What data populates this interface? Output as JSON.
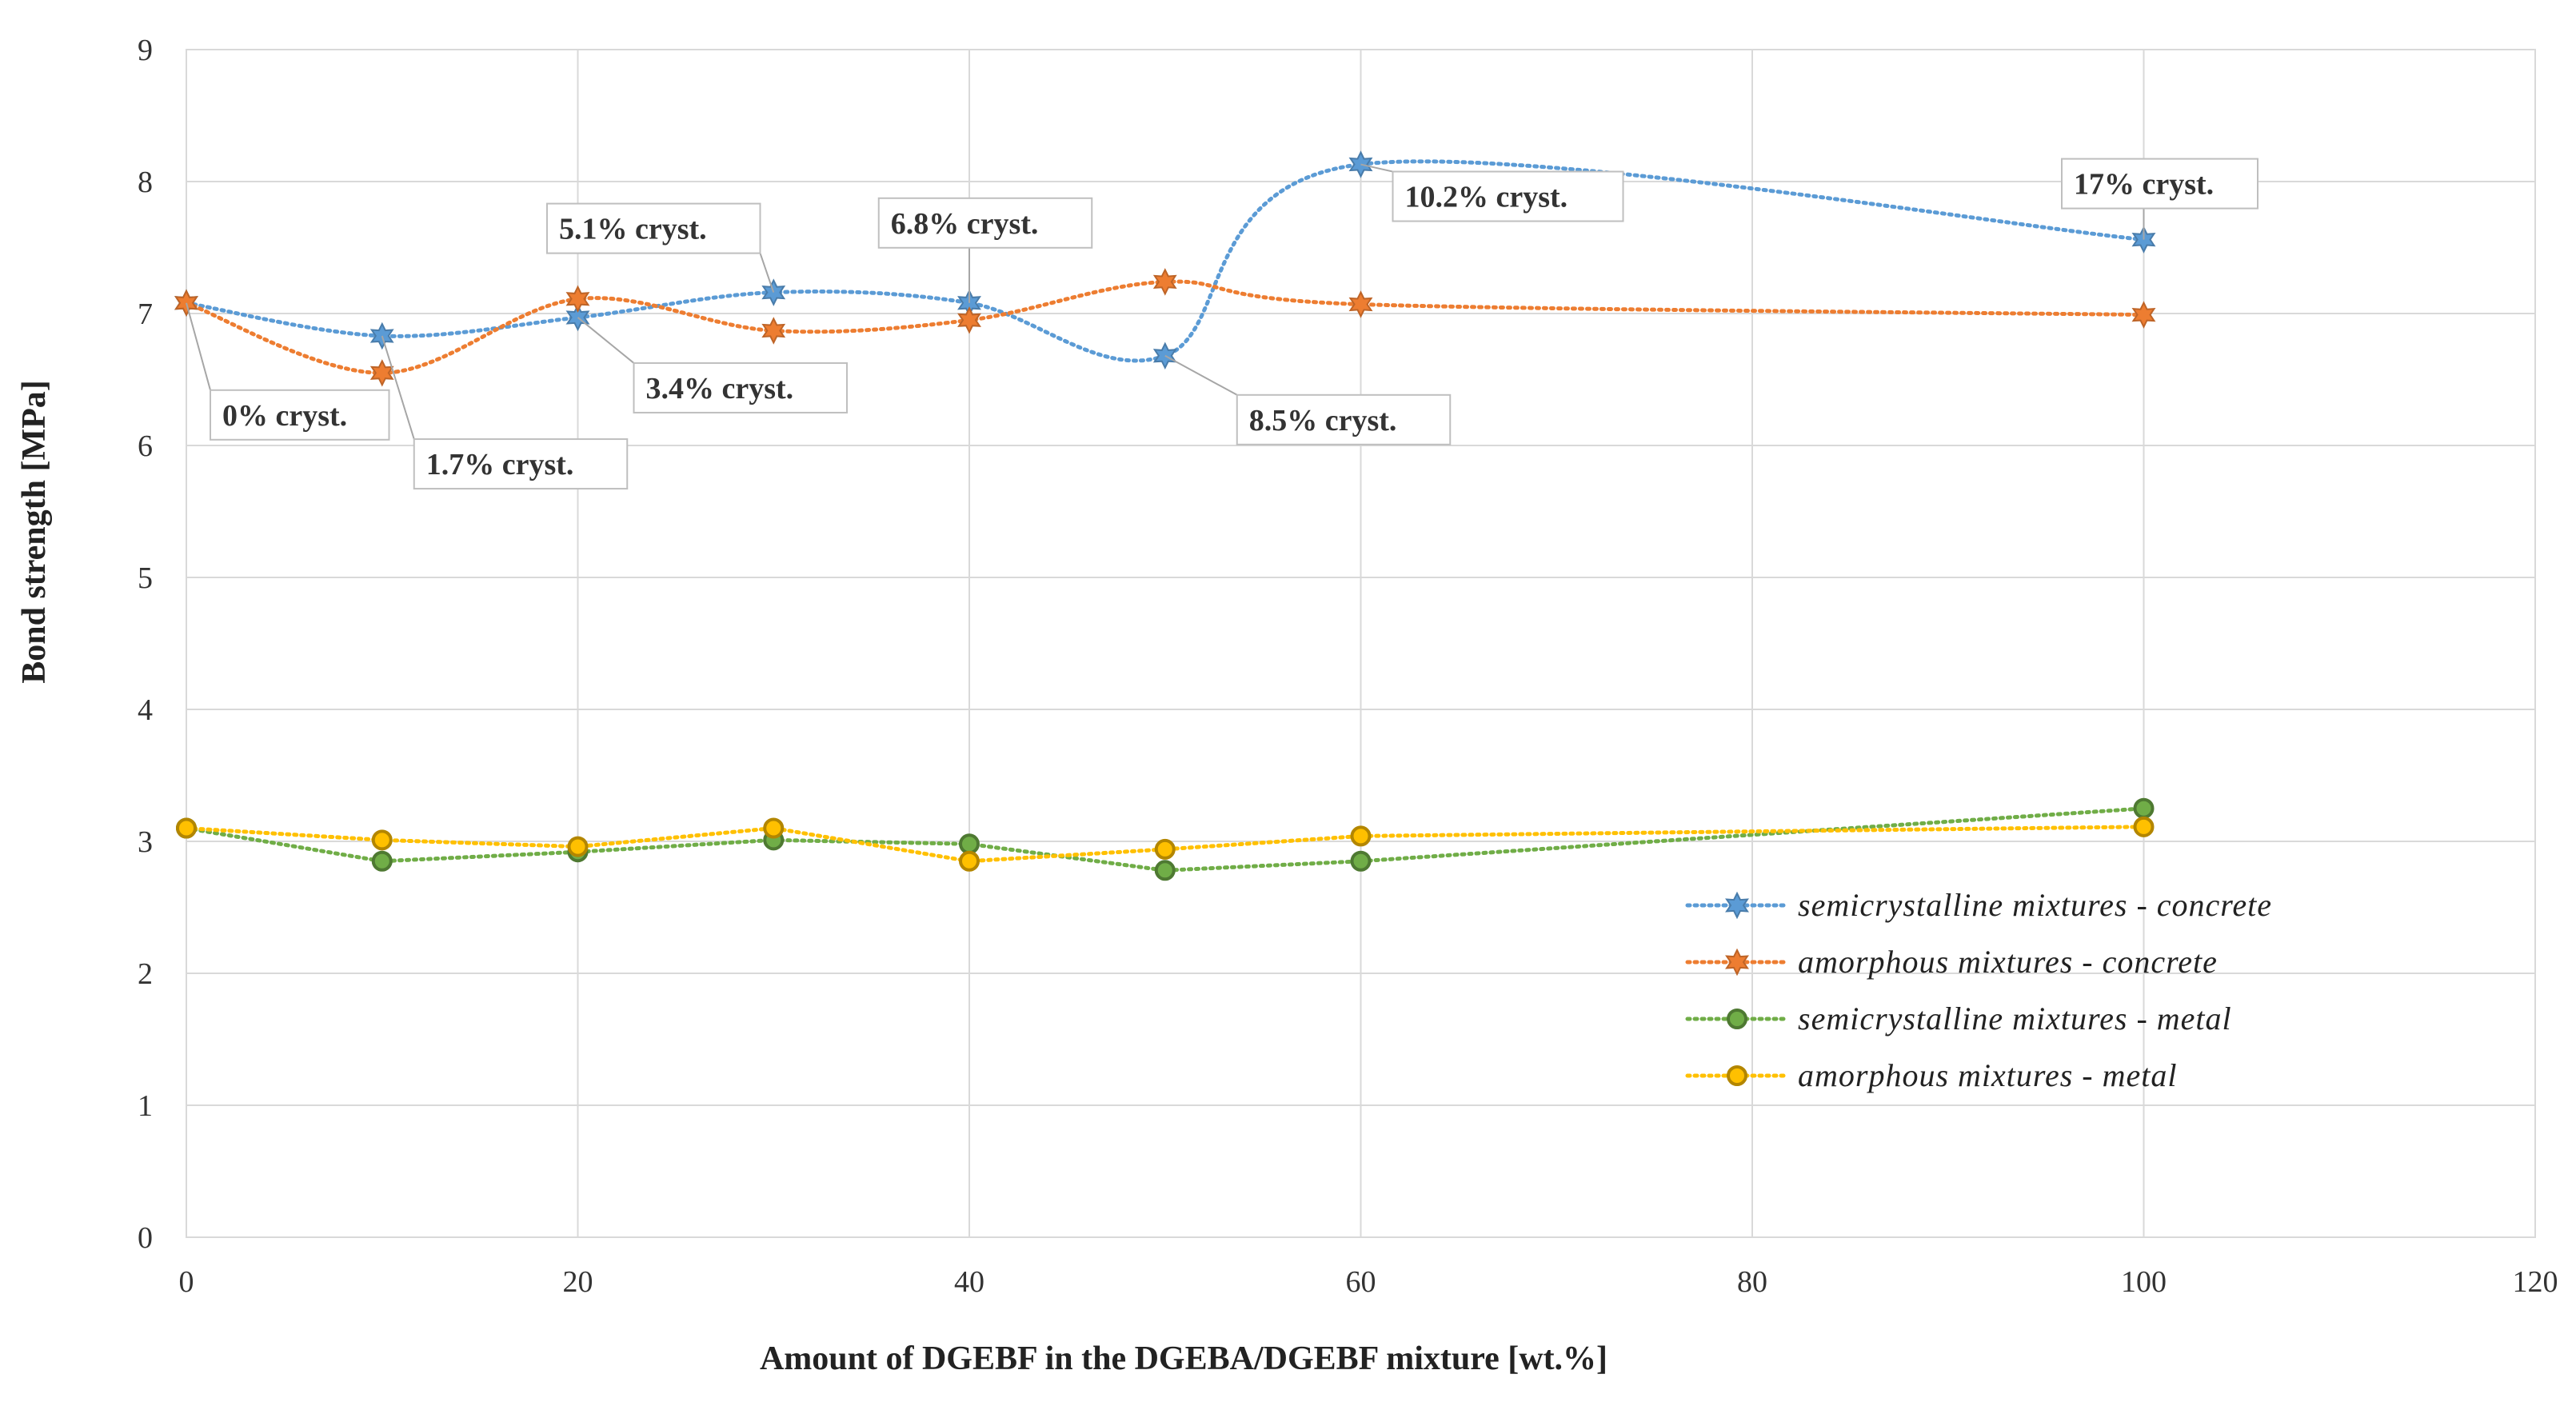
{
  "chart_data": {
    "type": "line",
    "title": "",
    "xlabel": "Amount of DGEBF in the DGEBA/DGEBF mixture [wt.%]",
    "ylabel": "Bond strength [MPa]",
    "xlim": [
      0,
      120
    ],
    "ylim": [
      0,
      9
    ],
    "x_ticks": [
      "0",
      "20",
      "40",
      "60",
      "80",
      "100",
      "120"
    ],
    "y_ticks": [
      "0",
      "1",
      "2",
      "3",
      "4",
      "5",
      "6",
      "7",
      "8",
      "9"
    ],
    "grid": true,
    "legend_position": "bottom-right",
    "series": [
      {
        "name": "semicrystalline mixtures - concrete",
        "color": "#5b9bd5",
        "marker": "star",
        "x": [
          0,
          10,
          20,
          30,
          40,
          50,
          60,
          100
        ],
        "values": [
          7.08,
          6.83,
          6.97,
          7.16,
          7.08,
          6.68,
          8.13,
          7.56
        ]
      },
      {
        "name": "amorphous mixtures - concrete",
        "color": "#ed7d31",
        "marker": "star",
        "x": [
          0,
          10,
          20,
          30,
          40,
          50,
          60,
          100
        ],
        "values": [
          7.08,
          6.55,
          7.11,
          6.87,
          6.95,
          7.24,
          7.07,
          6.99
        ]
      },
      {
        "name": "semicrystalline mixtures - metal",
        "color": "#70ad47",
        "marker": "circle",
        "x": [
          0,
          10,
          20,
          30,
          40,
          50,
          60,
          100
        ],
        "values": [
          3.1,
          2.85,
          2.92,
          3.01,
          2.98,
          2.78,
          2.85,
          3.25
        ]
      },
      {
        "name": "amorphous mixtures - metal",
        "color": "#ffc000",
        "marker": "circle",
        "x": [
          0,
          10,
          20,
          30,
          40,
          50,
          60,
          100
        ],
        "values": [
          3.1,
          3.01,
          2.96,
          3.1,
          2.85,
          2.94,
          3.04,
          3.11
        ]
      }
    ],
    "annotations": [
      {
        "text": "0% cryst.",
        "x": 0,
        "y": 7.08
      },
      {
        "text": "1.7% cryst.",
        "x": 10,
        "y": 6.83
      },
      {
        "text": "3.4% cryst.",
        "x": 20,
        "y": 6.97
      },
      {
        "text": "5.1% cryst.",
        "x": 30,
        "y": 7.16
      },
      {
        "text": "6.8% cryst.",
        "x": 40,
        "y": 7.08
      },
      {
        "text": "8.5% cryst.",
        "x": 50,
        "y": 6.68
      },
      {
        "text": "10.2% cryst.",
        "x": 60,
        "y": 8.13
      },
      {
        "text": "17% cryst.",
        "x": 100,
        "y": 7.56
      }
    ]
  }
}
